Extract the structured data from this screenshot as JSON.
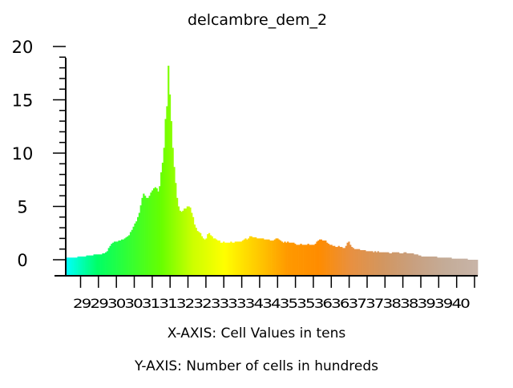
{
  "chart_data": {
    "type": "bar",
    "title": "delcambre_dem_2",
    "xlabel": "X-AXIS: Cell Values in tens",
    "ylabel": "Y-AXIS: Number of cells in hundreds",
    "y_ticks": [
      0,
      5,
      10,
      15,
      20
    ],
    "ylim": [
      -0.6,
      20.3
    ],
    "x_ticks": [
      "29",
      "29",
      "30",
      "30",
      "31",
      "31",
      "32",
      "32",
      "33",
      "33",
      "34",
      "34",
      "35",
      "35",
      "36",
      "36",
      "37",
      "37",
      "38",
      "38",
      "39",
      "39",
      "40"
    ],
    "x_ticks_shown": "2929303031313232333334343535363637373838393940",
    "x_range": [
      28.4,
      40.5
    ],
    "grid": false,
    "bar_values": [
      0.2,
      0.2,
      0.2,
      0.2,
      0.2,
      0.2,
      0.2,
      0.2,
      0.3,
      0.3,
      0.3,
      0.3,
      0.3,
      0.3,
      0.4,
      0.4,
      0.4,
      0.4,
      0.4,
      0.5,
      0.5,
      0.5,
      0.5,
      0.5,
      0.5,
      0.6,
      0.6,
      0.7,
      0.8,
      1.1,
      1.3,
      1.5,
      1.6,
      1.7,
      1.7,
      1.7,
      1.8,
      1.8,
      1.9,
      1.9,
      2.0,
      2.1,
      2.2,
      2.3,
      2.6,
      2.8,
      3.1,
      3.4,
      3.6,
      4.0,
      4.4,
      5.1,
      5.8,
      6.2,
      6.0,
      5.8,
      5.8,
      6.0,
      6.3,
      6.5,
      6.7,
      6.8,
      6.7,
      6.4,
      6.9,
      8.2,
      9.1,
      10.5,
      13.2,
      14.4,
      18.2,
      15.5,
      13.0,
      10.5,
      8.7,
      7.2,
      5.8,
      5.0,
      4.6,
      4.5,
      4.6,
      4.8,
      4.8,
      5.0,
      5.0,
      4.9,
      4.4,
      4.0,
      3.3,
      3.0,
      2.7,
      2.6,
      2.5,
      2.2,
      2.0,
      1.9,
      2.0,
      2.4,
      2.5,
      2.3,
      2.2,
      2.0,
      2.0,
      1.9,
      1.8,
      1.8,
      1.6,
      1.6,
      1.7,
      1.6,
      1.6,
      1.6,
      1.6,
      1.7,
      1.6,
      1.6,
      1.7,
      1.7,
      1.7,
      1.7,
      1.7,
      1.8,
      1.9,
      2.0,
      1.9,
      2.0,
      2.2,
      2.2,
      2.1,
      2.1,
      2.1,
      2.0,
      2.0,
      2.0,
      2.0,
      2.0,
      1.9,
      1.9,
      1.9,
      1.9,
      1.8,
      1.8,
      1.8,
      1.9,
      2.0,
      2.0,
      1.9,
      1.8,
      1.7,
      1.6,
      1.7,
      1.6,
      1.7,
      1.6,
      1.6,
      1.6,
      1.6,
      1.5,
      1.4,
      1.4,
      1.4,
      1.5,
      1.4,
      1.4,
      1.4,
      1.4,
      1.5,
      1.4,
      1.4,
      1.4,
      1.4,
      1.5,
      1.7,
      1.8,
      1.9,
      1.9,
      1.8,
      1.8,
      1.8,
      1.6,
      1.5,
      1.4,
      1.4,
      1.3,
      1.3,
      1.2,
      1.2,
      1.3,
      1.2,
      1.2,
      1.1,
      1.1,
      1.3,
      1.6,
      1.7,
      1.4,
      1.2,
      1.1,
      1.0,
      1.0,
      1.0,
      1.0,
      0.9,
      0.9,
      0.9,
      0.9,
      0.8,
      0.8,
      0.8,
      0.8,
      0.8,
      0.7,
      0.8,
      0.7,
      0.8,
      0.7,
      0.7,
      0.7,
      0.7,
      0.7,
      0.7,
      0.7,
      0.6,
      0.6,
      0.7,
      0.7,
      0.7,
      0.7,
      0.7,
      0.6,
      0.6,
      0.6,
      0.7,
      0.7,
      0.6,
      0.6,
      0.6,
      0.6,
      0.6,
      0.5,
      0.5,
      0.5,
      0.4,
      0.4,
      0.3,
      0.3,
      0.3,
      0.3,
      0.3,
      0.3,
      0.3,
      0.3,
      0.3,
      0.3,
      0.3,
      0.2,
      0.2,
      0.2,
      0.2,
      0.2,
      0.2,
      0.2,
      0.2,
      0.2,
      0.2,
      0.1,
      0.1,
      0.1,
      0.1,
      0.1,
      0.1,
      0.1,
      0.1,
      0.1,
      0.1,
      0.1,
      0.0,
      0.0,
      0.0,
      0.0,
      0.0,
      0.0,
      0.0
    ],
    "colors": {
      "gradient": [
        "#00ffff",
        "#00ff66",
        "#33ff33",
        "#66ff00",
        "#ccff00",
        "#ffff00",
        "#ffcc00",
        "#ff9900",
        "#ff8c00",
        "#e89040",
        "#d29660",
        "#c8a080",
        "#c4ac98",
        "#c8b4a8"
      ],
      "axis": "#000000",
      "background": "#ffffff"
    }
  }
}
